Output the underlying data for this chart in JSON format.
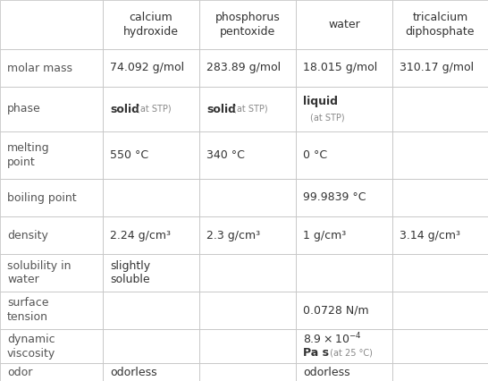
{
  "col_headers": [
    "",
    "calcium\nhydroxide",
    "phosphorus\npentoxide",
    "water",
    "tricalcium\ndiphosphate"
  ],
  "rows": [
    {
      "label": "molar mass",
      "values": [
        "74.092 g/mol",
        "283.89 g/mol",
        "18.015 g/mol",
        "310.17 g/mol"
      ]
    },
    {
      "label": "phase",
      "values": [
        "solid_stp",
        "solid_stp",
        "liquid_stp",
        ""
      ]
    },
    {
      "label": "melting\npoint",
      "values": [
        "550 °C",
        "340 °C",
        "0 °C",
        ""
      ]
    },
    {
      "label": "boiling point",
      "values": [
        "",
        "",
        "99.9839 °C",
        ""
      ]
    },
    {
      "label": "density",
      "values": [
        "2.24 g/cm³",
        "2.3 g/cm³",
        "1 g/cm³",
        "3.14 g/cm³"
      ]
    },
    {
      "label": "solubility in\nwater",
      "values": [
        "slightly\nsoluble",
        "",
        "",
        ""
      ]
    },
    {
      "label": "surface\ntension",
      "values": [
        "",
        "",
        "0.0728 N/m",
        ""
      ]
    },
    {
      "label": "dynamic\nviscosity",
      "values": [
        "",
        "",
        "viscosity_special",
        ""
      ]
    },
    {
      "label": "odor",
      "values": [
        "odorless",
        "",
        "odorless",
        ""
      ]
    }
  ],
  "bg_color": "#ffffff",
  "line_color": "#c8c8c8",
  "text_color": "#333333",
  "label_color": "#555555",
  "small_text_color": "#888888",
  "header_fontsize": 9.0,
  "cell_fontsize": 9.0,
  "label_fontsize": 9.0,
  "small_fontsize": 7.0
}
